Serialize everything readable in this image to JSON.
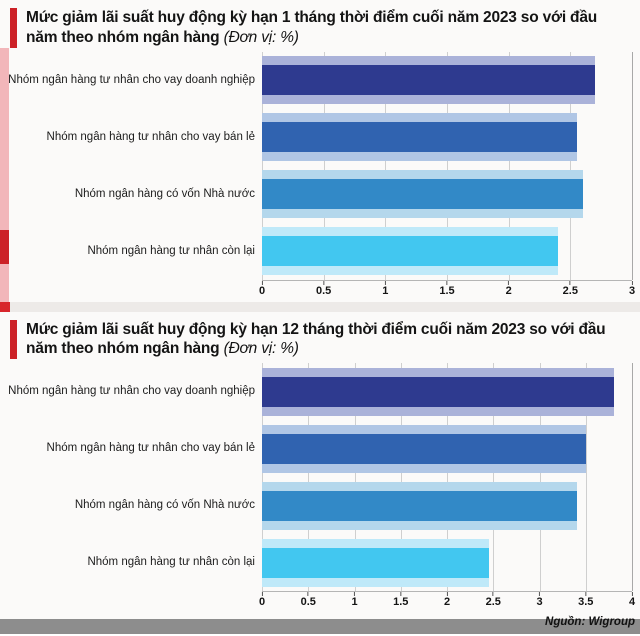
{
  "source_note": "Nguồn: Wigroup",
  "colors": {
    "accent_red": "#cc2127",
    "accent_pink": "#f2b6ba",
    "divider_gray": "#edeae8",
    "footer_gray": "#8d8d8d",
    "gridline": "#cfcfcf"
  },
  "charts": [
    {
      "title_main": "Mức giảm lãi suất huy động kỳ hạn 1 tháng thời điểm cuối năm 2023 so với đầu năm theo nhóm ngân hàng",
      "title_unit": "(Đơn vị: %)"
    },
    {
      "title_main": "Mức giảm lãi suất huy động kỳ hạn 12 tháng thời điểm cuối năm 2023 so với đầu năm theo nhóm ngân hàng",
      "title_unit": "(Đơn vị: %)"
    }
  ],
  "chart_data": [
    {
      "type": "bar",
      "orientation": "horizontal",
      "title": "Mức giảm lãi suất huy động kỳ hạn 1 tháng thời điểm cuối năm 2023 so với đầu năm theo nhóm ngân hàng (Đơn vị: %)",
      "unit": "%",
      "categories": [
        "Nhóm ngân hàng tư nhân cho vay doanh nghiệp",
        "Nhóm ngân hàng tư nhân cho vay bán lẻ",
        "Nhóm ngân hàng có vốn Nhà nước",
        "Nhóm ngân hàng tư nhân còn lại"
      ],
      "values": [
        2.7,
        2.55,
        2.6,
        2.4
      ],
      "bar_colors": [
        "#2e3a8f",
        "#3063b0",
        "#3289c7",
        "#42c7f0"
      ],
      "bar_tints": [
        "#aab2d9",
        "#b0c6e5",
        "#b4d7ec",
        "#bfe9f9"
      ],
      "xlim": [
        0,
        3
      ],
      "xticks": [
        0,
        0.5,
        1,
        1.5,
        2,
        2.5,
        3
      ],
      "xtick_labels": [
        "0",
        "0.5",
        "1",
        "1.5",
        "2",
        "2.5",
        "3"
      ],
      "grid": true,
      "legend": false
    },
    {
      "type": "bar",
      "orientation": "horizontal",
      "title": "Mức giảm lãi suất huy động kỳ hạn 12 tháng thời điểm cuối năm 2023 so với đầu năm theo nhóm ngân hàng (Đơn vị: %)",
      "unit": "%",
      "categories": [
        "Nhóm ngân hàng tư nhân cho vay doanh nghiệp",
        "Nhóm ngân hàng tư nhân cho vay bán lẻ",
        "Nhóm ngân hàng có vốn Nhà nước",
        "Nhóm ngân hàng tư nhân còn lại"
      ],
      "values": [
        3.8,
        3.5,
        3.4,
        2.45
      ],
      "bar_colors": [
        "#2e3a8f",
        "#3063b0",
        "#3289c7",
        "#42c7f0"
      ],
      "bar_tints": [
        "#aab2d9",
        "#b0c6e5",
        "#b4d7ec",
        "#bfe9f9"
      ],
      "xlim": [
        0,
        4
      ],
      "xticks": [
        0,
        0.5,
        1,
        1.5,
        2,
        2.5,
        3,
        3.5,
        4
      ],
      "xtick_labels": [
        "0",
        "0.5",
        "1",
        "1.5",
        "2",
        "2.5",
        "3",
        "3.5",
        "4"
      ],
      "grid": true,
      "legend": false
    }
  ]
}
